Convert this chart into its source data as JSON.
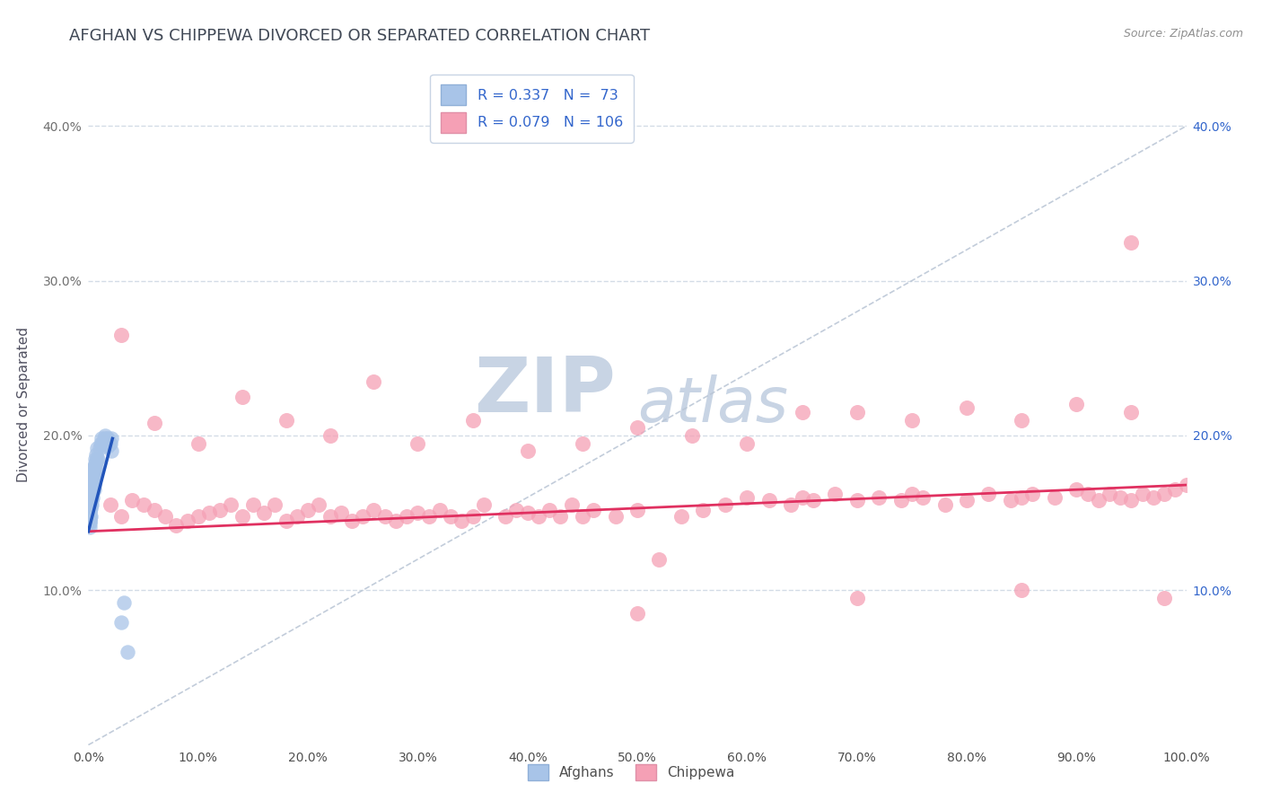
{
  "title": "AFGHAN VS CHIPPEWA DIVORCED OR SEPARATED CORRELATION CHART",
  "source_text": "Source: ZipAtlas.com",
  "ylabel": "Divorced or Separated",
  "watermark_top": "ZIP",
  "watermark_bot": "atlas",
  "xlim": [
    0.0,
    1.0
  ],
  "ylim": [
    0.0,
    0.44
  ],
  "xticks": [
    0.0,
    0.1,
    0.2,
    0.3,
    0.4,
    0.5,
    0.6,
    0.7,
    0.8,
    0.9,
    1.0
  ],
  "xtick_labels": [
    "0.0%",
    "10.0%",
    "20.0%",
    "30.0%",
    "40.0%",
    "50.0%",
    "60.0%",
    "70.0%",
    "80.0%",
    "90.0%",
    "100.0%"
  ],
  "yticks": [
    0.0,
    0.1,
    0.2,
    0.3,
    0.4
  ],
  "ytick_labels": [
    "",
    "10.0%",
    "20.0%",
    "30.0%",
    "40.0%"
  ],
  "ytick_labels_right": [
    "",
    "10.0%",
    "20.0%",
    "30.0%",
    "40.0%"
  ],
  "afghan_color": "#a8c4e8",
  "chippewa_color": "#f5a0b5",
  "afghan_line_color": "#2255bb",
  "chippewa_line_color": "#e03060",
  "ref_line_color": "#b8c4d4",
  "legend_text_color": "#3366cc",
  "title_color": "#404855",
  "source_color": "#909090",
  "watermark_color": "#c8d4e4",
  "background_color": "#ffffff",
  "grid_color": "#c8d4e0",
  "afghan_R": 0.337,
  "afghan_N": 73,
  "chippewa_R": 0.079,
  "chippewa_N": 106,
  "afghan_line_x0": 0.0,
  "afghan_line_x1": 0.022,
  "afghan_line_y0": 0.138,
  "afghan_line_y1": 0.198,
  "chippewa_line_x0": 0.0,
  "chippewa_line_x1": 1.0,
  "chippewa_line_y0": 0.138,
  "chippewa_line_y1": 0.168,
  "afghan_points_x": [
    0.001,
    0.001,
    0.001,
    0.001,
    0.001,
    0.001,
    0.001,
    0.001,
    0.001,
    0.001,
    0.001,
    0.001,
    0.001,
    0.001,
    0.001,
    0.002,
    0.002,
    0.002,
    0.002,
    0.002,
    0.002,
    0.002,
    0.002,
    0.002,
    0.002,
    0.003,
    0.003,
    0.003,
    0.003,
    0.003,
    0.003,
    0.003,
    0.003,
    0.003,
    0.004,
    0.004,
    0.004,
    0.004,
    0.004,
    0.004,
    0.004,
    0.005,
    0.005,
    0.005,
    0.005,
    0.005,
    0.006,
    0.006,
    0.006,
    0.006,
    0.007,
    0.007,
    0.007,
    0.008,
    0.008,
    0.009,
    0.01,
    0.011,
    0.012,
    0.013,
    0.014,
    0.015,
    0.016,
    0.017,
    0.018,
    0.018,
    0.019,
    0.02,
    0.021,
    0.021,
    0.03,
    0.032,
    0.036
  ],
  "afghan_points_y": [
    0.148,
    0.152,
    0.155,
    0.143,
    0.157,
    0.15,
    0.146,
    0.153,
    0.141,
    0.158,
    0.144,
    0.148,
    0.155,
    0.151,
    0.145,
    0.16,
    0.163,
    0.155,
    0.165,
    0.158,
    0.17,
    0.153,
    0.162,
    0.148,
    0.168,
    0.165,
    0.172,
    0.158,
    0.175,
    0.162,
    0.155,
    0.17,
    0.165,
    0.178,
    0.17,
    0.175,
    0.163,
    0.168,
    0.172,
    0.16,
    0.178,
    0.175,
    0.168,
    0.18,
    0.172,
    0.165,
    0.178,
    0.185,
    0.175,
    0.182,
    0.183,
    0.188,
    0.18,
    0.185,
    0.192,
    0.185,
    0.192,
    0.195,
    0.198,
    0.195,
    0.198,
    0.2,
    0.195,
    0.198,
    0.198,
    0.193,
    0.195,
    0.195,
    0.198,
    0.19,
    0.079,
    0.092,
    0.06
  ],
  "chippewa_points_x": [
    0.02,
    0.03,
    0.04,
    0.05,
    0.06,
    0.07,
    0.08,
    0.09,
    0.1,
    0.11,
    0.12,
    0.13,
    0.14,
    0.15,
    0.16,
    0.17,
    0.18,
    0.19,
    0.2,
    0.21,
    0.22,
    0.23,
    0.24,
    0.25,
    0.26,
    0.27,
    0.28,
    0.29,
    0.3,
    0.31,
    0.32,
    0.33,
    0.34,
    0.35,
    0.36,
    0.38,
    0.39,
    0.4,
    0.41,
    0.42,
    0.43,
    0.44,
    0.45,
    0.46,
    0.48,
    0.5,
    0.52,
    0.54,
    0.56,
    0.58,
    0.6,
    0.62,
    0.64,
    0.65,
    0.66,
    0.68,
    0.7,
    0.72,
    0.74,
    0.75,
    0.76,
    0.78,
    0.8,
    0.82,
    0.84,
    0.85,
    0.86,
    0.88,
    0.9,
    0.91,
    0.92,
    0.93,
    0.94,
    0.95,
    0.96,
    0.97,
    0.98,
    0.99,
    1.0,
    0.03,
    0.06,
    0.1,
    0.14,
    0.18,
    0.22,
    0.26,
    0.3,
    0.35,
    0.4,
    0.45,
    0.5,
    0.55,
    0.6,
    0.65,
    0.7,
    0.75,
    0.8,
    0.85,
    0.9,
    0.95,
    0.98,
    0.5,
    0.7,
    0.85,
    0.95
  ],
  "chippewa_points_y": [
    0.155,
    0.148,
    0.158,
    0.155,
    0.152,
    0.148,
    0.142,
    0.145,
    0.148,
    0.15,
    0.152,
    0.155,
    0.148,
    0.155,
    0.15,
    0.155,
    0.145,
    0.148,
    0.152,
    0.155,
    0.148,
    0.15,
    0.145,
    0.148,
    0.152,
    0.148,
    0.145,
    0.148,
    0.15,
    0.148,
    0.152,
    0.148,
    0.145,
    0.148,
    0.155,
    0.148,
    0.152,
    0.15,
    0.148,
    0.152,
    0.148,
    0.155,
    0.148,
    0.152,
    0.148,
    0.152,
    0.12,
    0.148,
    0.152,
    0.155,
    0.16,
    0.158,
    0.155,
    0.16,
    0.158,
    0.162,
    0.158,
    0.16,
    0.158,
    0.162,
    0.16,
    0.155,
    0.158,
    0.162,
    0.158,
    0.16,
    0.162,
    0.16,
    0.165,
    0.162,
    0.158,
    0.162,
    0.16,
    0.158,
    0.162,
    0.16,
    0.162,
    0.165,
    0.168,
    0.265,
    0.208,
    0.195,
    0.225,
    0.21,
    0.2,
    0.235,
    0.195,
    0.21,
    0.19,
    0.195,
    0.205,
    0.2,
    0.195,
    0.215,
    0.215,
    0.21,
    0.218,
    0.21,
    0.22,
    0.215,
    0.095,
    0.085,
    0.095,
    0.1,
    0.325
  ]
}
